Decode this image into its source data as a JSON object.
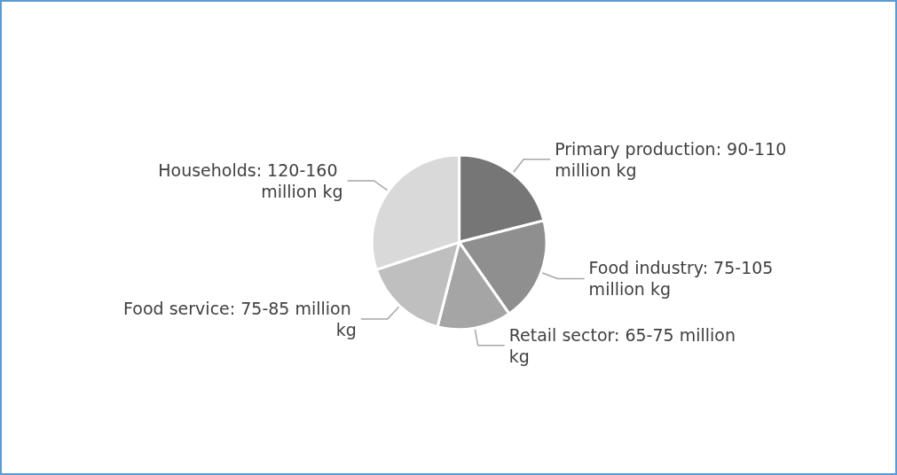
{
  "chart_data": {
    "type": "pie",
    "categories": [
      "Primary production: 90-110 million kg",
      "Food industry: 75-105 million kg",
      "Retail sector: 65-75 million kg",
      "Food service: 75-85 million kg",
      "Households: 120-160 million kg"
    ],
    "values": [
      21.0,
      19.3,
      13.7,
      15.9,
      30.1
    ],
    "colors": [
      "#767676",
      "#8f8f8f",
      "#a5a5a5",
      "#bfbfbf",
      "#d9d9d9"
    ],
    "legend": false
  }
}
